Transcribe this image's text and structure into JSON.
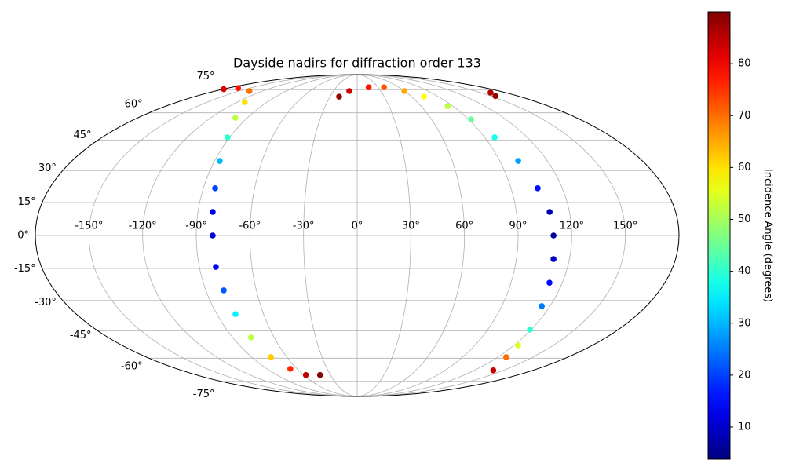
{
  "chart_data": {
    "type": "scatter",
    "projection": "mollweide",
    "title": "Dayside nadirs for diffraction order 133",
    "x": [
      -179.4,
      -166,
      -136.7,
      -112.3,
      -99.9,
      -91.5,
      -86.7,
      -83.1,
      -81.7,
      -80.8,
      -80.6,
      -79.4,
      -78.0,
      -76.7,
      -73.7,
      -66.8,
      -57.5,
      -41.6,
      -20.0,
      -10.0,
      16.5,
      38.5,
      59.9,
      73.9,
      85.1,
      92.0,
      97.0,
      101.6,
      105.6,
      108.8,
      109.8,
      111.0,
      112.5,
      114.9,
      119.1,
      123.3,
      127.3,
      139.6,
      162.2,
      154.9
    ],
    "y": [
      75.4,
      76.2,
      74.0,
      66.5,
      57.1,
      46.5,
      34.6,
      21.6,
      10.7,
      0,
      -14.3,
      -25.2,
      -36.6,
      -48.5,
      -59.4,
      -66.5,
      -70.5,
      -70.5,
      70.1,
      74.0,
      76.8,
      76.8,
      74.0,
      70.1,
      64.0,
      56.2,
      46.5,
      34.6,
      21.6,
      10.7,
      0,
      -10.7,
      -21.6,
      -32.7,
      -44.4,
      -52.8,
      -59.4,
      -67.5,
      72.9,
      70.5
    ],
    "c": [
      82,
      78,
      70,
      60,
      52,
      40,
      30,
      20,
      13,
      11,
      14,
      22,
      35,
      52,
      62,
      76,
      85,
      89,
      88,
      83,
      78,
      72,
      65,
      58,
      52,
      45,
      38,
      28,
      16,
      8,
      6,
      9,
      15,
      25,
      40,
      55,
      70,
      84,
      86,
      88
    ],
    "colormap": "jet",
    "clim": [
      3.8,
      90
    ],
    "colorbar_label": "Incidence Angle (degrees)",
    "colorbar_ticks": [
      10,
      20,
      30,
      40,
      50,
      60,
      70,
      80
    ],
    "xlim": [
      -180,
      180
    ],
    "ylim": [
      -90,
      90
    ],
    "xticks": [
      {
        "value": -150,
        "label": "-150°"
      },
      {
        "value": -120,
        "label": "-120°"
      },
      {
        "value": -90,
        "label": "-90°"
      },
      {
        "value": -60,
        "label": "-60°"
      },
      {
        "value": -30,
        "label": "-30°"
      },
      {
        "value": 0,
        "label": "0°"
      },
      {
        "value": 30,
        "label": "30°"
      },
      {
        "value": 60,
        "label": "60°"
      },
      {
        "value": 90,
        "label": "90°"
      },
      {
        "value": 120,
        "label": "120°"
      },
      {
        "value": 150,
        "label": "150°"
      }
    ],
    "yticks": [
      {
        "value": -75,
        "label": "-75°"
      },
      {
        "value": -60,
        "label": "-60°"
      },
      {
        "value": -45,
        "label": "-45°"
      },
      {
        "value": -30,
        "label": "-30°"
      },
      {
        "value": -15,
        "label": "-15°"
      },
      {
        "value": 0,
        "label": "0°"
      },
      {
        "value": 15,
        "label": "15°"
      },
      {
        "value": 30,
        "label": "30°"
      },
      {
        "value": 45,
        "label": "45°"
      },
      {
        "value": 60,
        "label": "60°"
      },
      {
        "value": 75,
        "label": "75°"
      }
    ],
    "grid": true
  }
}
